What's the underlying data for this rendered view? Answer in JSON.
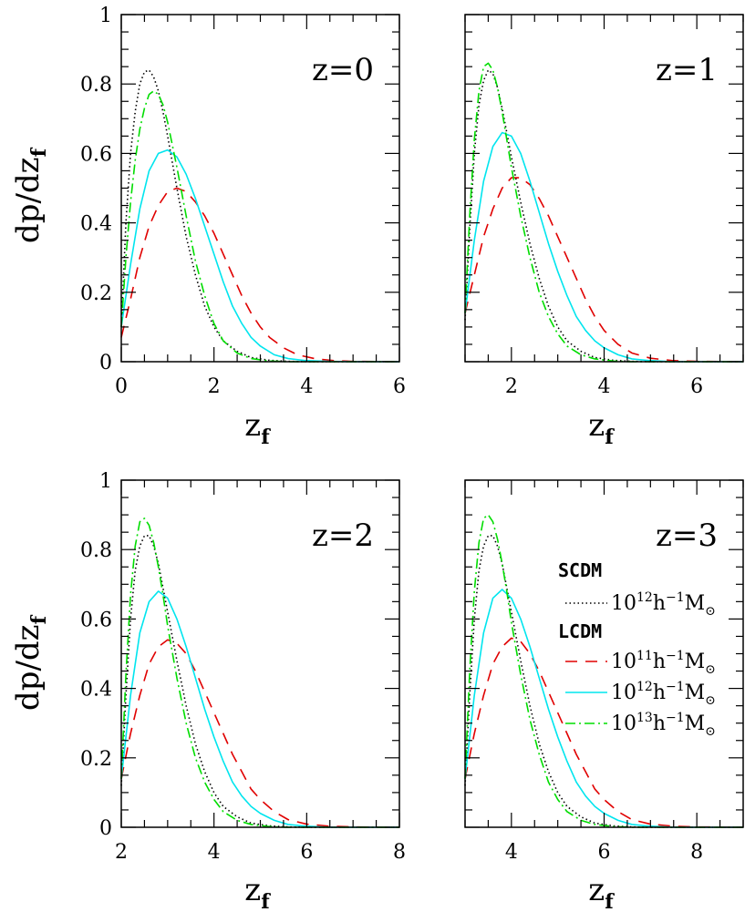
{
  "figure": {
    "ylabel": "dp/dz",
    "ylabel_sub": "f",
    "xlabel": "z",
    "xlabel_sub": "f"
  },
  "legend": {
    "groups": [
      {
        "heading": "SCDM",
        "entries": [
          {
            "mass_exp": "12",
            "series": "scdm_m12",
            "color": "#000000",
            "style": "dotted"
          }
        ]
      },
      {
        "heading": "LCDM",
        "entries": [
          {
            "mass_exp": "11",
            "series": "lcdm_m11",
            "color": "#e00000",
            "style": "dashed"
          },
          {
            "mass_exp": "12",
            "series": "lcdm_m12",
            "color": "#00e5ee",
            "style": "solid"
          },
          {
            "mass_exp": "13",
            "series": "lcdm_m13",
            "color": "#00dd00",
            "style": "dashdot"
          }
        ]
      }
    ],
    "mass_base": "10",
    "mass_units": "h",
    "mass_units_exp": "−1",
    "mass_symbol": "M",
    "mass_symbol_sub": "⊙"
  },
  "chart_data": [
    {
      "type": "line",
      "title": "z=0",
      "xlim": [
        0,
        6
      ],
      "ylim": [
        0,
        1
      ],
      "xticks": [
        0,
        2,
        4,
        6
      ],
      "yticks": [
        0,
        0.2,
        0.4,
        0.6,
        0.8,
        1
      ],
      "ytick_labels": [
        "0",
        "0.2",
        "0.4",
        "0.6",
        "0.8",
        "1"
      ],
      "series": [
        {
          "key": "scdm_m12",
          "x": [
            0,
            0.1,
            0.2,
            0.3,
            0.4,
            0.5,
            0.6,
            0.7,
            0.8,
            0.9,
            1.0,
            1.2,
            1.4,
            1.6,
            1.8,
            2.0,
            2.2,
            2.5,
            2.8,
            3.2,
            3.6,
            4.0,
            5.0,
            6.0
          ],
          "y": [
            0.1,
            0.4,
            0.6,
            0.72,
            0.8,
            0.835,
            0.84,
            0.82,
            0.78,
            0.72,
            0.65,
            0.5,
            0.36,
            0.25,
            0.16,
            0.1,
            0.06,
            0.03,
            0.012,
            0.004,
            0.001,
            0.0,
            0.0,
            0.0
          ]
        },
        {
          "key": "lcdm_m11",
          "x": [
            0,
            0.2,
            0.4,
            0.6,
            0.8,
            1.0,
            1.2,
            1.4,
            1.6,
            1.8,
            2.0,
            2.2,
            2.4,
            2.6,
            2.8,
            3.0,
            3.2,
            3.5,
            3.8,
            4.2,
            4.6,
            5.0,
            6.0
          ],
          "y": [
            0.07,
            0.18,
            0.3,
            0.39,
            0.45,
            0.49,
            0.5,
            0.49,
            0.46,
            0.42,
            0.37,
            0.31,
            0.25,
            0.19,
            0.14,
            0.1,
            0.07,
            0.04,
            0.02,
            0.008,
            0.003,
            0.001,
            0.0
          ]
        },
        {
          "key": "lcdm_m12",
          "x": [
            0,
            0.2,
            0.4,
            0.6,
            0.8,
            1.0,
            1.2,
            1.4,
            1.6,
            1.8,
            2.0,
            2.2,
            2.4,
            2.6,
            2.8,
            3.0,
            3.3,
            3.6,
            4.0,
            4.5,
            5.0,
            6.0
          ],
          "y": [
            0.1,
            0.28,
            0.44,
            0.55,
            0.6,
            0.61,
            0.59,
            0.54,
            0.47,
            0.39,
            0.31,
            0.23,
            0.16,
            0.11,
            0.07,
            0.045,
            0.02,
            0.009,
            0.003,
            0.001,
            0.0,
            0.0
          ]
        },
        {
          "key": "lcdm_m13",
          "x": [
            0,
            0.1,
            0.2,
            0.3,
            0.4,
            0.5,
            0.6,
            0.7,
            0.8,
            0.9,
            1.0,
            1.2,
            1.4,
            1.6,
            1.8,
            2.0,
            2.2,
            2.5,
            2.8,
            3.2,
            3.6,
            4.0,
            5.0,
            6.0
          ],
          "y": [
            0.1,
            0.3,
            0.46,
            0.58,
            0.67,
            0.73,
            0.77,
            0.78,
            0.77,
            0.74,
            0.69,
            0.56,
            0.42,
            0.29,
            0.19,
            0.11,
            0.06,
            0.025,
            0.009,
            0.002,
            0.0,
            0.0,
            0.0,
            0.0
          ]
        }
      ]
    },
    {
      "type": "line",
      "title": "z=1",
      "xlim": [
        1,
        7
      ],
      "ylim": [
        0,
        1
      ],
      "xticks": [
        2,
        4,
        6
      ],
      "yticks": [
        0,
        0.2,
        0.4,
        0.6,
        0.8,
        1
      ],
      "ytick_labels": [],
      "series": [
        {
          "key": "scdm_m12",
          "x": [
            1.0,
            1.1,
            1.2,
            1.3,
            1.4,
            1.5,
            1.6,
            1.7,
            1.8,
            1.9,
            2.0,
            2.2,
            2.4,
            2.6,
            2.8,
            3.0,
            3.2,
            3.5,
            3.8,
            4.2,
            4.6,
            5.0,
            7.0
          ],
          "y": [
            0.12,
            0.38,
            0.6,
            0.74,
            0.81,
            0.84,
            0.83,
            0.79,
            0.73,
            0.66,
            0.59,
            0.46,
            0.34,
            0.24,
            0.16,
            0.1,
            0.06,
            0.03,
            0.012,
            0.004,
            0.001,
            0.0,
            0.0
          ]
        },
        {
          "key": "lcdm_m11",
          "x": [
            1.0,
            1.2,
            1.4,
            1.6,
            1.8,
            2.0,
            2.2,
            2.4,
            2.6,
            2.8,
            3.0,
            3.2,
            3.4,
            3.6,
            3.8,
            4.0,
            4.3,
            4.6,
            5.0,
            5.5,
            6.0,
            7.0
          ],
          "y": [
            0.14,
            0.25,
            0.36,
            0.44,
            0.5,
            0.53,
            0.53,
            0.51,
            0.47,
            0.42,
            0.36,
            0.3,
            0.24,
            0.18,
            0.13,
            0.09,
            0.05,
            0.025,
            0.01,
            0.003,
            0.001,
            0.0
          ]
        },
        {
          "key": "lcdm_m12",
          "x": [
            1.0,
            1.2,
            1.4,
            1.6,
            1.8,
            2.0,
            2.2,
            2.4,
            2.6,
            2.8,
            3.0,
            3.2,
            3.4,
            3.6,
            3.8,
            4.0,
            4.3,
            4.6,
            5.0,
            5.5,
            7.0
          ],
          "y": [
            0.14,
            0.35,
            0.52,
            0.62,
            0.66,
            0.65,
            0.6,
            0.52,
            0.43,
            0.34,
            0.26,
            0.19,
            0.13,
            0.09,
            0.06,
            0.04,
            0.02,
            0.008,
            0.003,
            0.0,
            0.0
          ]
        },
        {
          "key": "lcdm_m13",
          "x": [
            1.0,
            1.1,
            1.2,
            1.3,
            1.4,
            1.5,
            1.6,
            1.7,
            1.8,
            1.9,
            2.0,
            2.2,
            2.4,
            2.6,
            2.8,
            3.0,
            3.2,
            3.5,
            3.8,
            4.2,
            4.6,
            5.0,
            7.0
          ],
          "y": [
            0.14,
            0.42,
            0.64,
            0.78,
            0.85,
            0.86,
            0.84,
            0.79,
            0.72,
            0.64,
            0.56,
            0.42,
            0.3,
            0.2,
            0.13,
            0.08,
            0.045,
            0.02,
            0.008,
            0.002,
            0.0,
            0.0,
            0.0
          ]
        }
      ]
    },
    {
      "type": "line",
      "title": "z=2",
      "xlim": [
        2,
        8
      ],
      "ylim": [
        0,
        1
      ],
      "xticks": [
        2,
        4,
        6,
        8
      ],
      "yticks": [
        0,
        0.2,
        0.4,
        0.6,
        0.8,
        1
      ],
      "ytick_labels": [
        "0",
        "0.2",
        "0.4",
        "0.6",
        "0.8",
        "1"
      ],
      "series": [
        {
          "key": "scdm_m12",
          "x": [
            2.0,
            2.1,
            2.2,
            2.3,
            2.4,
            2.5,
            2.6,
            2.7,
            2.8,
            2.9,
            3.0,
            3.2,
            3.4,
            3.6,
            3.8,
            4.0,
            4.2,
            4.5,
            4.8,
            5.2,
            5.6,
            6.0,
            8.0
          ],
          "y": [
            0.12,
            0.38,
            0.6,
            0.74,
            0.81,
            0.84,
            0.84,
            0.81,
            0.76,
            0.69,
            0.62,
            0.48,
            0.35,
            0.24,
            0.16,
            0.1,
            0.06,
            0.03,
            0.012,
            0.004,
            0.001,
            0.0,
            0.0
          ]
        },
        {
          "key": "lcdm_m11",
          "x": [
            2.0,
            2.2,
            2.4,
            2.6,
            2.8,
            3.0,
            3.2,
            3.4,
            3.6,
            3.8,
            4.0,
            4.2,
            4.4,
            4.6,
            4.8,
            5.0,
            5.3,
            5.6,
            6.0,
            6.5,
            7.0,
            8.0
          ],
          "y": [
            0.14,
            0.27,
            0.38,
            0.47,
            0.52,
            0.54,
            0.53,
            0.5,
            0.45,
            0.39,
            0.33,
            0.27,
            0.21,
            0.16,
            0.11,
            0.08,
            0.045,
            0.022,
            0.009,
            0.003,
            0.001,
            0.0
          ]
        },
        {
          "key": "lcdm_m12",
          "x": [
            2.0,
            2.2,
            2.4,
            2.6,
            2.8,
            3.0,
            3.2,
            3.4,
            3.6,
            3.8,
            4.0,
            4.2,
            4.4,
            4.6,
            4.8,
            5.0,
            5.3,
            5.6,
            6.0,
            6.5,
            8.0
          ],
          "y": [
            0.14,
            0.38,
            0.56,
            0.65,
            0.68,
            0.66,
            0.6,
            0.52,
            0.43,
            0.34,
            0.26,
            0.19,
            0.13,
            0.09,
            0.06,
            0.04,
            0.02,
            0.008,
            0.003,
            0.0,
            0.0
          ]
        },
        {
          "key": "lcdm_m13",
          "x": [
            2.0,
            2.1,
            2.2,
            2.3,
            2.4,
            2.5,
            2.6,
            2.7,
            2.8,
            2.9,
            3.0,
            3.2,
            3.4,
            3.6,
            3.8,
            4.0,
            4.2,
            4.5,
            4.8,
            5.2,
            5.6,
            6.0,
            8.0
          ],
          "y": [
            0.14,
            0.44,
            0.67,
            0.81,
            0.88,
            0.89,
            0.87,
            0.82,
            0.75,
            0.67,
            0.58,
            0.43,
            0.3,
            0.2,
            0.13,
            0.08,
            0.045,
            0.02,
            0.008,
            0.002,
            0.0,
            0.0,
            0.0
          ]
        }
      ]
    },
    {
      "type": "line",
      "title": "z=3",
      "xlim": [
        3,
        9
      ],
      "ylim": [
        0,
        1
      ],
      "xticks": [
        4,
        6,
        8
      ],
      "yticks": [
        0,
        0.2,
        0.4,
        0.6,
        0.8,
        1
      ],
      "ytick_labels": [],
      "series": [
        {
          "key": "scdm_m12",
          "x": [
            3.0,
            3.1,
            3.2,
            3.3,
            3.4,
            3.5,
            3.6,
            3.7,
            3.8,
            3.9,
            4.0,
            4.2,
            4.4,
            4.6,
            4.8,
            5.0,
            5.2,
            5.5,
            5.8,
            6.2,
            6.6,
            7.0,
            9.0
          ],
          "y": [
            0.12,
            0.38,
            0.6,
            0.74,
            0.81,
            0.84,
            0.84,
            0.81,
            0.76,
            0.69,
            0.62,
            0.48,
            0.35,
            0.24,
            0.16,
            0.1,
            0.06,
            0.03,
            0.012,
            0.004,
            0.001,
            0.0,
            0.0
          ]
        },
        {
          "key": "lcdm_m11",
          "x": [
            3.0,
            3.2,
            3.4,
            3.6,
            3.8,
            4.0,
            4.2,
            4.4,
            4.6,
            4.8,
            5.0,
            5.2,
            5.4,
            5.6,
            5.8,
            6.0,
            6.3,
            6.6,
            7.0,
            7.5,
            8.0,
            9.0
          ],
          "y": [
            0.14,
            0.27,
            0.38,
            0.47,
            0.52,
            0.545,
            0.535,
            0.5,
            0.45,
            0.39,
            0.33,
            0.27,
            0.21,
            0.16,
            0.11,
            0.08,
            0.045,
            0.022,
            0.009,
            0.003,
            0.001,
            0.0
          ]
        },
        {
          "key": "lcdm_m12",
          "x": [
            3.0,
            3.2,
            3.4,
            3.6,
            3.8,
            4.0,
            4.2,
            4.4,
            4.6,
            4.8,
            5.0,
            5.2,
            5.4,
            5.6,
            5.8,
            6.0,
            6.3,
            6.6,
            7.0,
            7.5,
            9.0
          ],
          "y": [
            0.14,
            0.38,
            0.56,
            0.66,
            0.685,
            0.66,
            0.6,
            0.52,
            0.43,
            0.34,
            0.26,
            0.19,
            0.13,
            0.09,
            0.06,
            0.04,
            0.02,
            0.008,
            0.003,
            0.0,
            0.0
          ]
        },
        {
          "key": "lcdm_m13",
          "x": [
            3.0,
            3.1,
            3.2,
            3.3,
            3.4,
            3.5,
            3.6,
            3.7,
            3.8,
            3.9,
            4.0,
            4.2,
            4.4,
            4.6,
            4.8,
            5.0,
            5.2,
            5.5,
            5.8,
            6.2,
            6.6,
            7.0,
            9.0
          ],
          "y": [
            0.14,
            0.45,
            0.68,
            0.82,
            0.89,
            0.9,
            0.88,
            0.83,
            0.76,
            0.68,
            0.59,
            0.44,
            0.31,
            0.21,
            0.13,
            0.08,
            0.045,
            0.02,
            0.008,
            0.002,
            0.0,
            0.0,
            0.0
          ]
        }
      ]
    }
  ]
}
